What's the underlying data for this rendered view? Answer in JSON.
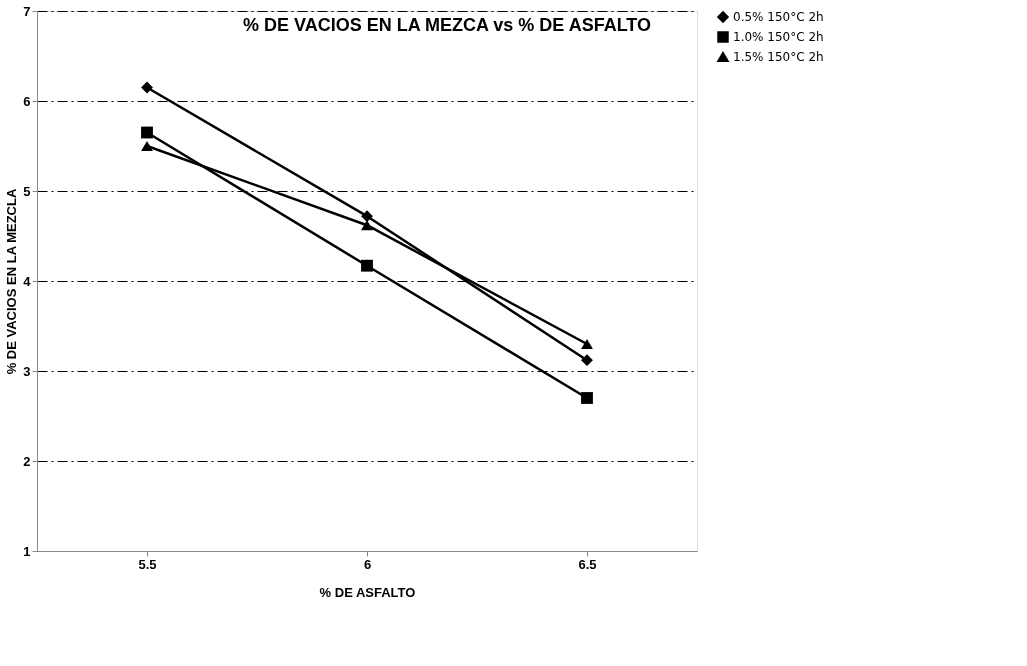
{
  "chart_data": {
    "type": "line",
    "title": "% DE VACIOS EN LA MEZCA vs % DE ASFALTO",
    "xlabel": "% DE ASFALTO",
    "ylabel": "% DE VACIOS EN LA MEZCLA",
    "categories": [
      "5.5",
      "6",
      "6.5"
    ],
    "series": [
      {
        "name": "0.5% 150°C 2h",
        "color": "#000000",
        "marker": "diamond",
        "values": [
          6.15,
          4.72,
          3.12
        ]
      },
      {
        "name": "1.0% 150°C 2h",
        "color": "#000000",
        "marker": "square",
        "values": [
          5.65,
          4.17,
          2.7
        ]
      },
      {
        "name": "1.5% 150°C 2h",
        "color": "#000000",
        "marker": "triangle",
        "values": [
          5.5,
          4.62,
          3.3
        ]
      }
    ],
    "ylim": [
      1,
      7
    ],
    "yticks": [
      1,
      2,
      3,
      4,
      5,
      6,
      7
    ],
    "grid": "y",
    "legend": "right",
    "line_style": "solid"
  }
}
